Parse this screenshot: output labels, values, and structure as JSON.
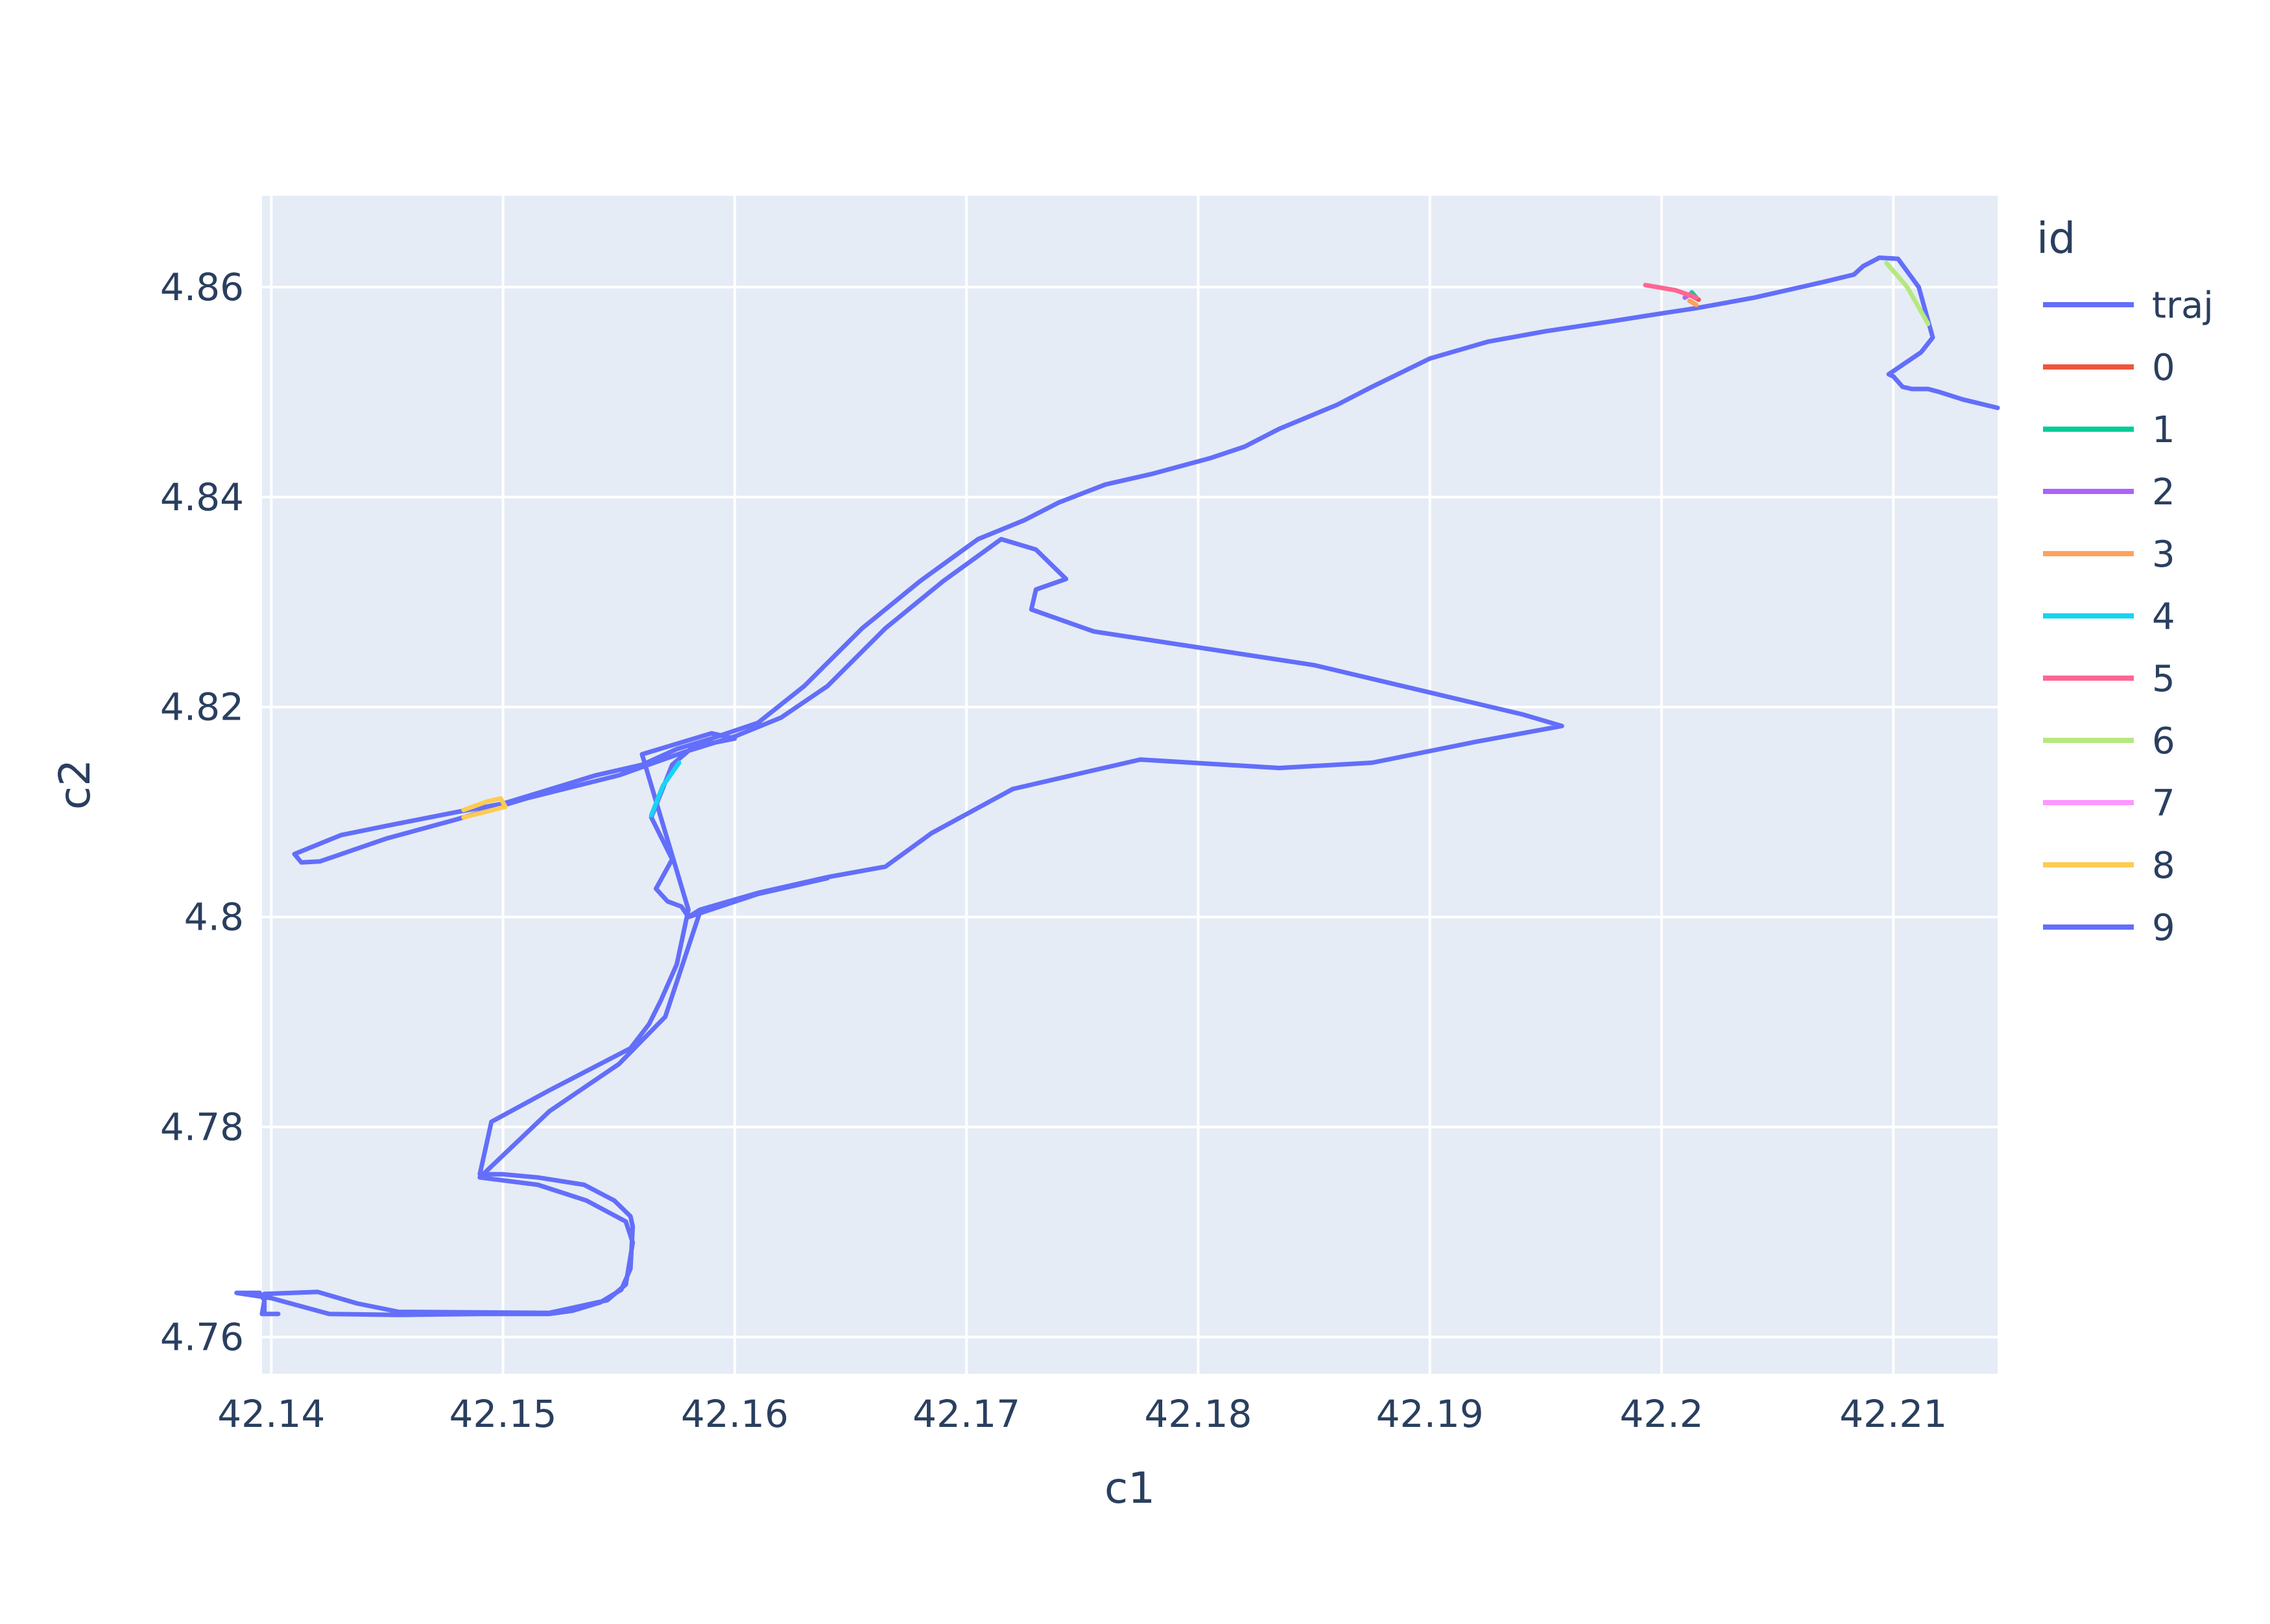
{
  "chart_data": {
    "type": "line",
    "title": "",
    "xlabel": "c1",
    "ylabel": "c2",
    "xlim": [
      42.1396,
      42.2145
    ],
    "ylim": [
      4.7565,
      4.8687
    ],
    "xticks": [
      42.14,
      42.15,
      42.16,
      42.17,
      42.18,
      42.19,
      42.2,
      42.21
    ],
    "xtick_labels": [
      "42.14",
      "42.15",
      "42.16",
      "42.17",
      "42.18",
      "42.19",
      "42.2",
      "42.21"
    ],
    "yticks": [
      4.76,
      4.78,
      4.8,
      4.82,
      4.84,
      4.86
    ],
    "ytick_labels": [
      "4.76",
      "4.78",
      "4.8",
      "4.82",
      "4.84",
      "4.86"
    ],
    "grid": true,
    "legend_title": "id",
    "legend_position": "right",
    "plot_bgcolor": "#e5ecf6",
    "series": [
      {
        "name": "traj",
        "color": "#636efa",
        "points": [
          [
            42.2145,
            4.8485
          ],
          [
            42.213,
            4.8493
          ],
          [
            42.212,
            4.85
          ],
          [
            42.2115,
            4.8503
          ],
          [
            42.2108,
            4.8503
          ],
          [
            42.2104,
            4.8505
          ],
          [
            42.21,
            4.8515
          ],
          [
            42.2098,
            4.8517
          ],
          [
            42.2112,
            4.8538
          ],
          [
            42.2117,
            4.8552
          ],
          [
            42.2111,
            4.86
          ],
          [
            42.2102,
            4.8627
          ],
          [
            42.2094,
            4.8628
          ],
          [
            42.2087,
            4.862
          ],
          [
            42.2083,
            4.8612
          ],
          [
            42.207,
            4.8605
          ],
          [
            42.204,
            4.859
          ],
          [
            42.2015,
            4.858
          ],
          [
            42.2,
            4.8575
          ],
          [
            42.198,
            4.8568
          ],
          [
            42.195,
            4.8558
          ],
          [
            42.1925,
            4.8548
          ],
          [
            42.19,
            4.8532
          ],
          [
            42.1875,
            4.8505
          ],
          [
            42.186,
            4.8488
          ],
          [
            42.1835,
            4.8465
          ],
          [
            42.182,
            4.8448
          ],
          [
            42.1805,
            4.8437
          ],
          [
            42.178,
            4.8422
          ],
          [
            42.176,
            4.8412
          ],
          [
            42.174,
            4.8395
          ],
          [
            42.1725,
            4.8378
          ],
          [
            42.1705,
            4.836
          ],
          [
            42.168,
            4.832
          ],
          [
            42.1655,
            4.8275
          ],
          [
            42.163,
            4.822
          ],
          [
            42.161,
            4.8185
          ],
          [
            42.159,
            4.817
          ],
          [
            42.1575,
            4.816
          ],
          [
            42.156,
            4.8145
          ],
          [
            42.154,
            4.8135
          ],
          [
            42.15,
            4.8108
          ],
          [
            42.148,
            4.81
          ],
          [
            42.145,
            4.8087
          ],
          [
            42.143,
            4.8078
          ],
          [
            42.141,
            4.806
          ],
          [
            42.1413,
            4.8052
          ],
          [
            42.1421,
            4.8053
          ],
          [
            42.145,
            4.8075
          ],
          [
            42.148,
            4.8093
          ],
          [
            42.151,
            4.8113
          ],
          [
            42.155,
            4.8135
          ],
          [
            42.1578,
            4.8157
          ],
          [
            42.16,
            4.8172
          ],
          [
            42.162,
            4.819
          ],
          [
            42.164,
            4.822
          ],
          [
            42.1665,
            4.8275
          ],
          [
            42.169,
            4.832
          ],
          [
            42.1715,
            4.836
          ],
          [
            42.173,
            4.835
          ],
          [
            42.1743,
            4.8322
          ],
          [
            42.173,
            4.8312
          ],
          [
            42.1728,
            4.8293
          ],
          [
            42.1755,
            4.8272
          ],
          [
            42.185,
            4.824
          ],
          [
            42.194,
            4.8193
          ],
          [
            42.1957,
            4.8182
          ],
          [
            42.192,
            4.8167
          ],
          [
            42.1875,
            4.8147
          ],
          [
            42.1835,
            4.8142
          ],
          [
            42.1775,
            4.815
          ],
          [
            42.172,
            4.8122
          ],
          [
            42.1685,
            4.808
          ],
          [
            42.1665,
            4.8048
          ],
          [
            42.164,
            4.8038
          ],
          [
            42.161,
            4.8023
          ],
          [
            42.1585,
            4.8007
          ],
          [
            42.158,
            4.8
          ],
          [
            42.1577,
            4.801
          ],
          [
            42.1571,
            4.8015
          ],
          [
            42.1566,
            4.8027
          ],
          [
            42.1573,
            4.8055
          ],
          [
            42.1564,
            4.8095
          ],
          [
            42.1573,
            4.8145
          ],
          [
            42.1582,
            4.8162
          ],
          [
            42.16,
            4.817
          ],
          [
            42.159,
            4.8175
          ],
          [
            42.156,
            4.8155
          ],
          [
            42.158,
            4.8007
          ],
          [
            42.1575,
            4.7955
          ],
          [
            42.1568,
            4.792
          ],
          [
            42.1563,
            4.7898
          ],
          [
            42.1555,
            4.7875
          ],
          [
            42.152,
            4.7835
          ],
          [
            42.1495,
            4.7805
          ],
          [
            42.149,
            4.7755
          ],
          [
            42.15,
            4.7755
          ],
          [
            42.1515,
            4.7752
          ],
          [
            42.1535,
            4.7745
          ],
          [
            42.1548,
            4.773
          ],
          [
            42.1555,
            4.7715
          ],
          [
            42.1556,
            4.7705
          ],
          [
            42.1555,
            4.7665
          ],
          [
            42.1551,
            4.7645
          ],
          [
            42.1542,
            4.7633
          ],
          [
            42.153,
            4.7625
          ],
          [
            42.152,
            4.7622
          ],
          [
            42.149,
            4.7622
          ],
          [
            42.1455,
            4.7621
          ],
          [
            42.1425,
            4.7622
          ],
          [
            42.14,
            4.7637
          ],
          [
            42.1385,
            4.7642
          ],
          [
            42.1395,
            4.7642
          ],
          [
            42.1397,
            4.7635
          ],
          [
            42.1396,
            4.7622
          ],
          [
            42.1403,
            4.7622
          ],
          [
            42.1397,
            4.7622
          ],
          [
            42.1397,
            4.7641
          ],
          [
            42.142,
            4.7643
          ],
          [
            42.1437,
            4.7632
          ],
          [
            42.1455,
            4.7624
          ],
          [
            42.152,
            4.7623
          ],
          [
            42.1545,
            4.7635
          ],
          [
            42.1553,
            4.765
          ],
          [
            42.1556,
            4.769
          ],
          [
            42.1553,
            4.771
          ],
          [
            42.1536,
            4.773
          ],
          [
            42.1515,
            4.7745
          ],
          [
            42.149,
            4.7752
          ],
          [
            42.152,
            4.7815
          ],
          [
            42.155,
            4.786
          ],
          [
            42.157,
            4.7905
          ],
          [
            42.1585,
            4.8005
          ],
          [
            42.158,
            4.8
          ],
          [
            42.161,
            4.8022
          ],
          [
            42.164,
            4.8037
          ]
        ]
      },
      {
        "name": "0",
        "color": "#EF553B",
        "points": [
          [
            42.2012,
            4.8593
          ],
          [
            42.2016,
            4.8588
          ]
        ]
      },
      {
        "name": "1",
        "color": "#00cc96",
        "points": [
          [
            42.2013,
            4.8595
          ],
          [
            42.2015,
            4.859
          ]
        ]
      },
      {
        "name": "2",
        "color": "#ab63fa",
        "points": [
          [
            42.201,
            4.859
          ],
          [
            42.2012,
            4.8593
          ]
        ]
      },
      {
        "name": "3",
        "color": "#FFA15A",
        "points": [
          [
            42.2012,
            4.8587
          ],
          [
            42.2015,
            4.8583
          ]
        ]
      },
      {
        "name": "4",
        "color": "#19d3f3",
        "points": [
          [
            42.1576,
            4.8147
          ],
          [
            42.1569,
            4.8125
          ],
          [
            42.1564,
            4.8097
          ]
        ]
      },
      {
        "name": "5",
        "color": "#FF6692",
        "points": [
          [
            42.1993,
            4.8602
          ],
          [
            42.2006,
            4.8597
          ],
          [
            42.2015,
            4.859
          ],
          [
            42.2012,
            4.8593
          ]
        ]
      },
      {
        "name": "6",
        "color": "#B6E880",
        "points": [
          [
            42.2097,
            4.8623
          ],
          [
            42.2106,
            4.86
          ],
          [
            42.2115,
            4.8565
          ]
        ]
      },
      {
        "name": "7",
        "color": "#FF97FF",
        "points": []
      },
      {
        "name": "8",
        "color": "#FECB52",
        "points": [
          [
            42.1483,
            4.8095
          ],
          [
            42.1501,
            4.8105
          ],
          [
            42.1499,
            4.8113
          ],
          [
            42.1493,
            4.811
          ],
          [
            42.1483,
            4.8102
          ]
        ]
      },
      {
        "name": "9",
        "color": "#636efa",
        "points": []
      }
    ]
  }
}
